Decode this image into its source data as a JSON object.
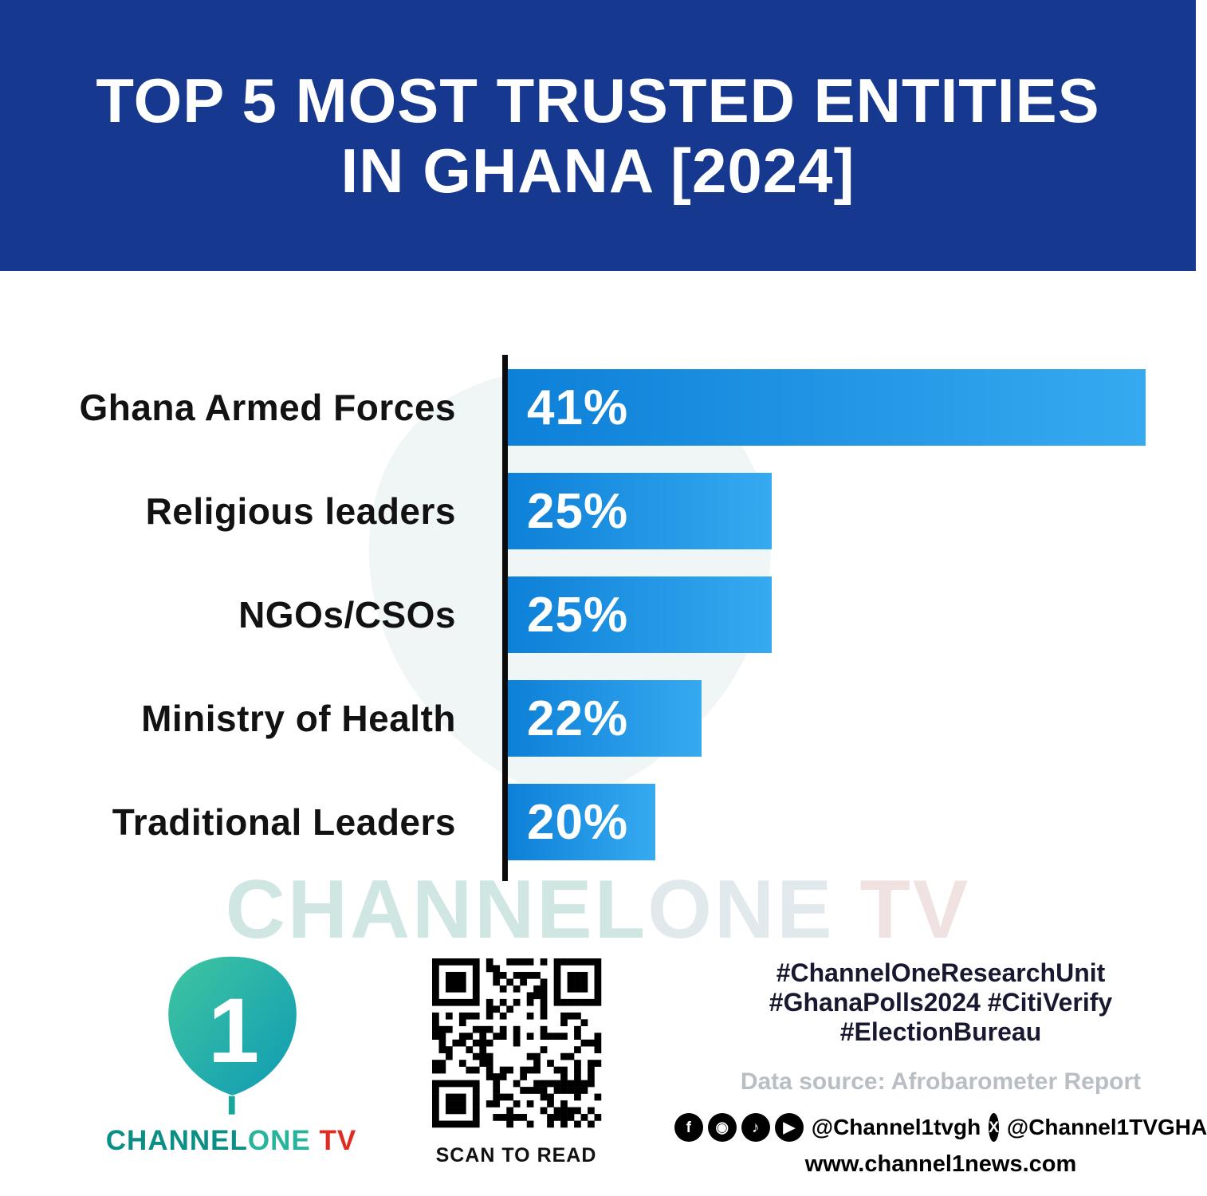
{
  "header": {
    "title_line1": "TOP 5 MOST TRUSTED ENTITIES",
    "title_line2": "IN GHANA [2024]"
  },
  "chart_data": {
    "type": "bar",
    "orientation": "horizontal",
    "title": "Top 5 Most Trusted Entities in Ghana [2024]",
    "categories": [
      "Ghana Armed Forces",
      "Religious leaders",
      "NGOs/CSOs",
      "Ministry of Health",
      "Traditional Leaders"
    ],
    "values": [
      41,
      25,
      25,
      22,
      20
    ],
    "value_labels": [
      "41%",
      "25%",
      "25%",
      "22%",
      "20%"
    ],
    "unit": "%",
    "bar_color_start": "#0d80d8",
    "bar_color_end": "#36aaf0",
    "axis_color": "#0b0b0b",
    "legend": "none",
    "grid": "off"
  },
  "watermark": {
    "part1": "CHANNEL",
    "part2": "ONE ",
    "part3": "TV"
  },
  "footer": {
    "logo": {
      "numeral": "1",
      "brand_channel": "CHANNEL",
      "brand_one": "ONE",
      "brand_tv": " TV"
    },
    "qr_caption": "SCAN TO READ",
    "hashtags": [
      "#ChannelOneResearchUnit",
      "#GhanaPolls2024 #CitiVerify",
      "#ElectionBureau"
    ],
    "data_source": "Data source: Afrobarometer Report",
    "social_icons": [
      {
        "name": "facebook-icon",
        "glyph": "f"
      },
      {
        "name": "instagram-icon",
        "glyph": "◉"
      },
      {
        "name": "tiktok-icon",
        "glyph": "♪"
      },
      {
        "name": "youtube-icon",
        "glyph": "▶"
      }
    ],
    "social_handle_1": "@Channel1tvgh",
    "x_glyph": "X",
    "social_handle_2": "@Channel1TVGHA",
    "website": "www.channel1news.com"
  }
}
